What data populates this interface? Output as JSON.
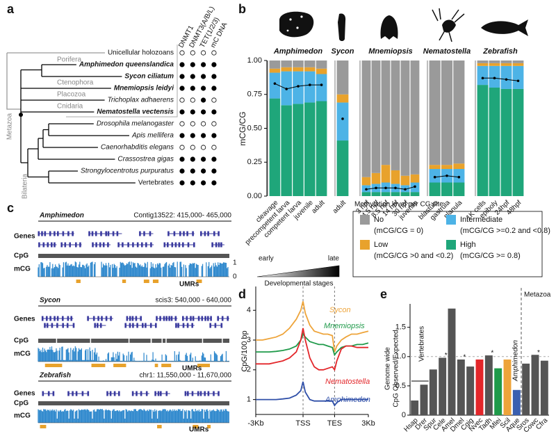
{
  "tree": {
    "panel": "a",
    "columns": [
      "DNMT1",
      "DNMT3(A/B/L)",
      "TET(1/2/3)",
      "mC DNA"
    ],
    "rows": [
      {
        "name": "Unicellular holozoans",
        "style": "normal",
        "values": [
          false,
          false,
          false,
          false
        ]
      },
      {
        "name": "Amphimedon queenslandica",
        "style": "bold-italic",
        "values": [
          true,
          true,
          true,
          true
        ]
      },
      {
        "name": "Sycon ciliatum",
        "style": "bold-italic",
        "values": [
          true,
          true,
          true,
          true
        ]
      },
      {
        "name": "Mnemiopsis leidyi",
        "style": "bold-italic",
        "values": [
          true,
          true,
          true,
          true
        ]
      },
      {
        "name": "Trichoplax adhaerens",
        "style": "italic",
        "values": [
          false,
          false,
          true,
          false
        ]
      },
      {
        "name": "Nematostella vectensis",
        "style": "bold-italic",
        "values": [
          true,
          true,
          true,
          true
        ]
      },
      {
        "name": "Drosophila melanogaster",
        "style": "italic",
        "values": [
          false,
          false,
          false,
          false
        ]
      },
      {
        "name": "Apis mellifera",
        "style": "italic",
        "values": [
          true,
          true,
          true,
          true
        ]
      },
      {
        "name": "Caenorhabditis elegans",
        "style": "italic",
        "values": [
          false,
          false,
          false,
          false
        ]
      },
      {
        "name": "Crassostrea gigas",
        "style": "italic",
        "values": [
          true,
          true,
          true,
          true
        ]
      },
      {
        "name": "Strongylocentrotus purpuratus",
        "style": "italic",
        "values": [
          true,
          true,
          true,
          true
        ]
      },
      {
        "name": "Vertebrates",
        "style": "normal",
        "values": [
          true,
          true,
          true,
          true
        ]
      }
    ],
    "clades": [
      "Porifera",
      "Ctenophora",
      "Placozoa",
      "Cnidaria",
      "Metazoa",
      "Bilateria"
    ]
  },
  "browser": {
    "panel": "c",
    "tracks": [
      {
        "species": "Amphimedon",
        "locus": "Contig13522: 415,000- 465,000"
      },
      {
        "species": "Sycon",
        "locus": "scis3: 540,000 - 640,000"
      },
      {
        "species": "Zebrafish",
        "locus": "chr1: 11,550,000 - 11,670,000"
      }
    ],
    "row_labels": [
      "Genes",
      "CpG",
      "mCG"
    ],
    "scale": [
      "1",
      "0"
    ],
    "umr_label": "UMRs",
    "signal_color": "#2a86cc",
    "umr_color": "#e8a22c"
  },
  "chart_data": [
    {
      "type": "stacked_bar",
      "panel": "b",
      "ylabel": "mCG/CG",
      "ylim": [
        0,
        1
      ],
      "yticks": [
        {
          "value": 0,
          "label": "0.00"
        },
        0.25,
        {
          "value": 0.5,
          "label": "0.50"
        },
        0.75,
        {
          "value": 1,
          "label": "1.00"
        }
      ],
      "series": [
        {
          "name": "High",
          "color": "#1fa67a",
          "description": "(mCG/CG >= 0.8)"
        },
        {
          "name": "Intermediate",
          "color": "#4db3e6",
          "description": "(mCG/CG >=0.2 and <0.8)"
        },
        {
          "name": "Low",
          "color": "#e8a22c",
          "description": "(mCG/CG >0 and <0.2)"
        },
        {
          "name": "No",
          "color": "#9a9a9a",
          "description": "(mCG/CG = 0)"
        }
      ],
      "mean_color": "#000000",
      "groups": [
        {
          "name": "Amphimedon",
          "categories": [
            "cleavage",
            "precompetent larva",
            "competent larva",
            "juvenile",
            "adult"
          ],
          "series": [
            {
              "values": [
                0.72,
                0.67,
                0.68,
                0.69,
                0.7
              ]
            },
            {
              "values": [
                0.19,
                0.25,
                0.24,
                0.23,
                0.2
              ]
            },
            {
              "values": [
                0.03,
                0.03,
                0.03,
                0.03,
                0.04
              ]
            },
            {
              "values": [
                0.06,
                0.05,
                0.05,
                0.05,
                0.06
              ]
            }
          ],
          "mean": [
            0.83,
            0.79,
            0.81,
            0.82,
            0.82
          ]
        },
        {
          "name": "Sycon",
          "categories": [
            "adult"
          ],
          "series": [
            {
              "values": [
                0.41
              ]
            },
            {
              "values": [
                0.28
              ]
            },
            {
              "values": [
                0.06
              ]
            },
            {
              "values": [
                0.25
              ]
            }
          ],
          "mean": [
            0.57
          ]
        },
        {
          "name": "Mnemiopsis",
          "categories": [
            "3 hpf",
            "4.5 hpf",
            "8.5 hpf",
            "14 hpf",
            "30 hpf",
            "juvenile"
          ],
          "series": [
            {
              "values": [
                0.03,
                0.03,
                0.03,
                0.03,
                0.03,
                0.03
              ]
            },
            {
              "values": [
                0.05,
                0.06,
                0.07,
                0.06,
                0.05,
                0.07
              ]
            },
            {
              "values": [
                0.06,
                0.08,
                0.13,
                0.1,
                0.07,
                0.06
              ]
            },
            {
              "values": [
                0.86,
                0.83,
                0.77,
                0.81,
                0.85,
                0.84
              ]
            }
          ],
          "mean": [
            0.05,
            0.06,
            0.06,
            0.06,
            0.05,
            0.07
          ]
        },
        {
          "name": "Nematostella",
          "categories": [
            "blastula",
            "gastrula",
            "planula"
          ],
          "series": [
            {
              "values": [
                0.1,
                0.1,
                0.1
              ]
            },
            {
              "values": [
                0.1,
                0.1,
                0.1
              ]
            },
            {
              "values": [
                0.03,
                0.03,
                0.04
              ]
            },
            {
              "values": [
                0.77,
                0.77,
                0.76
              ]
            }
          ],
          "mean": [
            0.14,
            0.15,
            0.14
          ]
        },
        {
          "name": "Zebrafish",
          "categories": [
            "1K cells",
            "epiboly",
            "24hpf",
            "48hpf"
          ],
          "series": [
            {
              "values": [
                0.82,
                0.8,
                0.79,
                0.79
              ]
            },
            {
              "values": [
                0.14,
                0.16,
                0.17,
                0.17
              ]
            },
            {
              "values": [
                0.02,
                0.02,
                0.02,
                0.02
              ]
            },
            {
              "values": [
                0.02,
                0.02,
                0.02,
                0.02
              ]
            }
          ],
          "mean": [
            0.87,
            0.87,
            0.86,
            0.85
          ]
        }
      ],
      "legend": {
        "title": "Methylation level per CG site"
      },
      "stage_gradient": {
        "start": "early",
        "end": "late",
        "caption": "Developmental stages"
      }
    },
    {
      "type": "line",
      "panel": "d",
      "ylabel": "CpG/100 bp",
      "x": [
        0,
        6,
        12,
        18,
        24,
        30,
        36,
        40,
        42,
        44,
        48,
        52,
        56,
        60,
        64,
        68,
        70,
        72,
        76,
        80,
        85,
        90,
        95,
        100
      ],
      "xlim": [
        0,
        100
      ],
      "xticks": [
        {
          "value": 0,
          "label": "-3Kb"
        },
        {
          "value": 42,
          "label": "TSS"
        },
        {
          "value": 70,
          "label": "TES"
        },
        {
          "value": 100,
          "label": "3Kb"
        }
      ],
      "ylim": [
        0.5,
        4.8
      ],
      "yticks": [
        1,
        2,
        3,
        4
      ],
      "series": [
        {
          "name": "Sycon",
          "color": "#eea43a",
          "values": [
            3.0,
            3.0,
            3.05,
            3.1,
            3.2,
            3.4,
            3.7,
            4.0,
            4.3,
            3.9,
            3.5,
            3.3,
            3.25,
            3.2,
            3.2,
            3.15,
            2.6,
            2.8,
            3.0,
            3.1,
            3.2,
            3.2,
            3.25,
            3.3
          ]
        },
        {
          "name": "Mnemiopsis",
          "color": "#1f9a4a",
          "values": [
            2.6,
            2.6,
            2.6,
            2.62,
            2.65,
            2.7,
            2.8,
            3.0,
            3.2,
            3.1,
            2.95,
            2.9,
            2.85,
            2.85,
            2.8,
            2.75,
            2.5,
            2.6,
            2.75,
            2.8,
            2.8,
            2.85,
            2.85,
            2.9
          ]
        },
        {
          "name": "Nematostella",
          "color": "#e3262a",
          "values": [
            2.2,
            2.2,
            2.2,
            2.25,
            2.3,
            2.4,
            2.6,
            3.0,
            3.4,
            3.0,
            2.4,
            2.1,
            2.0,
            2.0,
            2.05,
            2.1,
            2.0,
            2.3,
            2.7,
            2.8,
            2.8,
            2.75,
            2.75,
            2.75
          ]
        },
        {
          "name": "Amphimedon",
          "color": "#2f4fa8",
          "values": [
            1.0,
            1.0,
            1.0,
            1.0,
            1.02,
            1.05,
            1.15,
            1.3,
            1.6,
            1.25,
            1.0,
            0.95,
            0.95,
            0.95,
            0.95,
            0.95,
            0.8,
            0.9,
            1.0,
            1.0,
            1.0,
            1.0,
            1.0,
            1.0
          ]
        }
      ]
    },
    {
      "type": "bar",
      "panel": "e",
      "ylabel": [
        "Genome wide",
        "CpG Observed/Expected"
      ],
      "categories": [
        "Hsap",
        "Drer",
        "Spur",
        "Cele",
        "Amel",
        "Dmel",
        "Cgig",
        "Nvec",
        "Tadh",
        "Mlei",
        "Scil",
        "Aque",
        "Sros",
        "Cowc",
        "Cfra"
      ],
      "values": [
        0.25,
        0.52,
        0.78,
        0.98,
        1.82,
        0.95,
        0.83,
        0.95,
        1.02,
        0.8,
        0.95,
        0.43,
        0.88,
        1.03,
        0.93
      ],
      "colors": [
        "#555555",
        "#555555",
        "#555555",
        "#555555",
        "#555555",
        "#555555",
        "#555555",
        "#e3262a",
        "#555555",
        "#1f9a4a",
        "#eea43a",
        "#3a5fb0",
        "#555555",
        "#555555",
        "#555555"
      ],
      "asterisks": [
        null,
        null,
        null,
        "*",
        null,
        "*",
        null,
        null,
        "*",
        null,
        null,
        null,
        null,
        "*",
        null
      ],
      "ylim": [
        0,
        1.9
      ],
      "yticks": [
        0,
        0.5,
        {
          "value": 1,
          "label": "1.0"
        },
        1.5
      ],
      "refline": 1,
      "annotations": {
        "vertebrates": "Vertebrates",
        "metazoa": "Metazoa",
        "amphimedon": "Amphimedon"
      }
    }
  ]
}
